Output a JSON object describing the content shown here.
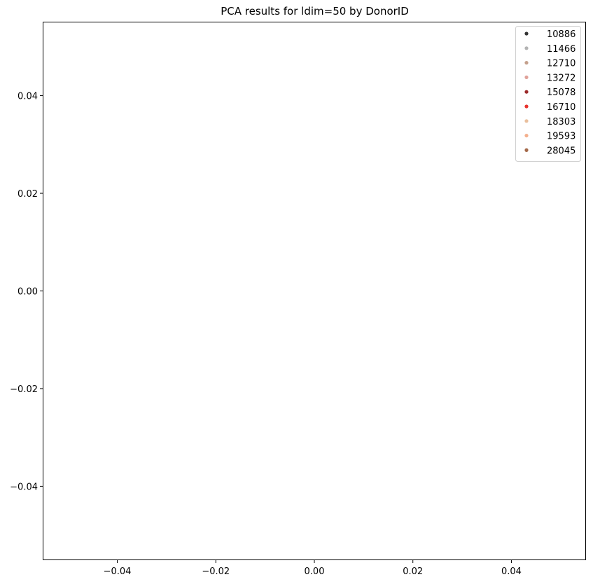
{
  "chart_data": {
    "type": "scatter",
    "title": "PCA results for ldim=50 by DonorID",
    "xlabel": "",
    "ylabel": "",
    "xlim": [
      -0.055,
      0.055
    ],
    "ylim": [
      -0.055,
      0.055
    ],
    "xticks": [
      -0.04,
      -0.02,
      0.0,
      0.02,
      0.04
    ],
    "yticks": [
      -0.04,
      -0.02,
      0.0,
      0.02,
      0.04
    ],
    "xtick_labels": [
      "−0.04",
      "−0.02",
      "0.00",
      "0.02",
      "0.04"
    ],
    "ytick_labels": [
      "−0.04",
      "−0.02",
      "0.00",
      "0.02",
      "0.04"
    ],
    "grid": false,
    "legend_position": "top-right",
    "series": [
      {
        "name": "10886",
        "color": "#333333",
        "points": []
      },
      {
        "name": "11466",
        "color": "#b3b3b3",
        "points": []
      },
      {
        "name": "12710",
        "color": "#c4a08c",
        "points": []
      },
      {
        "name": "13272",
        "color": "#e0a29a",
        "points": []
      },
      {
        "name": "15078",
        "color": "#9c2a2a",
        "points": []
      },
      {
        "name": "16710",
        "color": "#e8332e",
        "points": []
      },
      {
        "name": "18303",
        "color": "#e9bf9d",
        "points": []
      },
      {
        "name": "19593",
        "color": "#f4b08e",
        "points": []
      },
      {
        "name": "28045",
        "color": "#a4694a",
        "points": []
      }
    ]
  }
}
